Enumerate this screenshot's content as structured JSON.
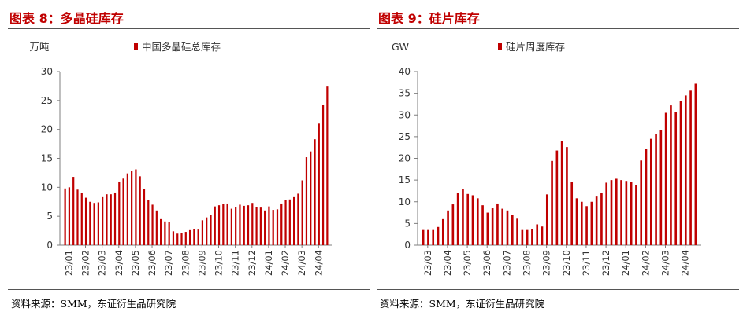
{
  "colors": {
    "title": "#c00000",
    "bar": "#c00000",
    "axis": "#7f7f7f",
    "text": "#333333"
  },
  "left_panel": {
    "title": "图表 8：多晶硅库存",
    "source": "资料来源：SMM，东证衍生品研究院"
  },
  "right_panel": {
    "title": "图表 9：硅片库存",
    "source": "资料来源：SMM，东证衍生品研究院"
  },
  "chart_data": [
    {
      "type": "bar",
      "ylabel": "万吨",
      "ylim": [
        0,
        30
      ],
      "yticks": [
        0,
        5,
        10,
        15,
        20,
        25,
        30
      ],
      "grid": false,
      "legend_placement": "top-center",
      "x_tick_labels": [
        "23/01",
        "23/02",
        "23/03",
        "23/04",
        "23/05",
        "23/06",
        "23/07",
        "23/08",
        "23/09",
        "23/10",
        "23/11",
        "23/12",
        "24/01",
        "24/02",
        "24/03",
        "24/04"
      ],
      "series": [
        {
          "name": "中国多晶硅总库存",
          "values": [
            9.8,
            10.0,
            11.8,
            9.6,
            9.0,
            8.2,
            7.5,
            7.3,
            7.4,
            8.3,
            8.8,
            8.8,
            9.1,
            11.0,
            11.5,
            12.4,
            12.8,
            13.1,
            11.9,
            9.7,
            7.8,
            7.0,
            6.0,
            4.5,
            4.1,
            4.0,
            2.4,
            2.0,
            2.1,
            2.3,
            2.6,
            2.8,
            2.7,
            4.3,
            4.8,
            5.2,
            6.7,
            6.9,
            7.1,
            7.2,
            6.3,
            6.6,
            7.0,
            6.8,
            6.9,
            7.3,
            6.6,
            6.5,
            6.0,
            6.7,
            6.1,
            6.2,
            7.2,
            7.8,
            7.9,
            8.3,
            8.9,
            11.2,
            15.2,
            16.2,
            18.3,
            21.0,
            24.3,
            27.4
          ]
        }
      ]
    },
    {
      "type": "bar",
      "ylabel": "GW",
      "ylim": [
        0,
        40
      ],
      "yticks": [
        0,
        5,
        10,
        15,
        20,
        25,
        30,
        35,
        40
      ],
      "grid": false,
      "legend_placement": "top-center",
      "x_tick_labels": [
        "23/03",
        "23/04",
        "23/05",
        "23/06",
        "23/07",
        "23/08",
        "23/09",
        "23/10",
        "23/11",
        "23/12",
        "24/01",
        "24/02",
        "24/03",
        "24/04"
      ],
      "series": [
        {
          "name": "硅片周度库存",
          "values": [
            3.5,
            3.5,
            3.5,
            4.2,
            6.0,
            8.0,
            9.4,
            12.0,
            13.0,
            11.8,
            11.5,
            10.8,
            9.2,
            7.5,
            8.5,
            9.6,
            8.4,
            8.0,
            7.0,
            6.1,
            3.5,
            3.5,
            3.8,
            4.8,
            4.3,
            11.7,
            19.4,
            21.8,
            24.0,
            22.6,
            14.5,
            10.8,
            10.0,
            9.0,
            10.0,
            11.2,
            12.0,
            14.4,
            15.0,
            15.3,
            15.0,
            14.8,
            14.5,
            13.8,
            19.5,
            22.2,
            24.5,
            25.6,
            26.5,
            30.5,
            32.2,
            30.6,
            33.2,
            34.5,
            35.6,
            37.2
          ]
        }
      ]
    }
  ]
}
